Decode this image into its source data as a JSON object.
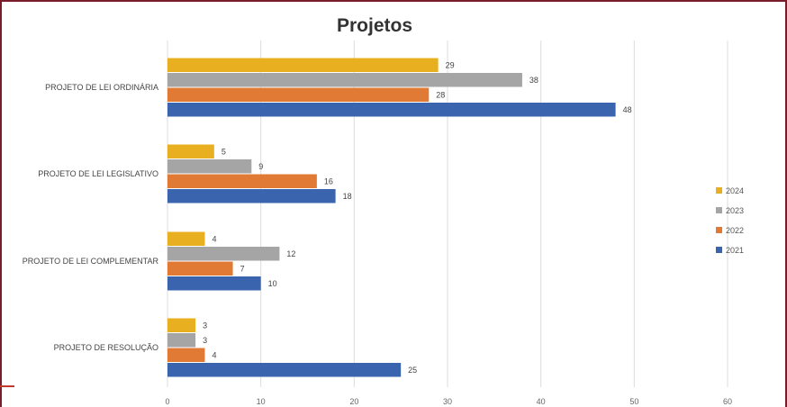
{
  "chart_data": {
    "type": "bar",
    "orientation": "horizontal",
    "title": "Projetos",
    "xlabel": "",
    "ylabel": "",
    "categories": [
      "PROJETO DE LEI ORDINÁRIA",
      "PROJETO DE LEI LEGISLATIVO",
      "PROJETO DE LEI COMPLEMENTAR",
      "PROJETO DE RESOLUÇÃO"
    ],
    "series": [
      {
        "name": "2024",
        "color": "#e8b020",
        "values": [
          29,
          5,
          4,
          3
        ]
      },
      {
        "name": "2023",
        "color": "#a5a5a5",
        "values": [
          38,
          9,
          12,
          3
        ]
      },
      {
        "name": "2022",
        "color": "#e07a35",
        "values": [
          28,
          16,
          7,
          4
        ]
      },
      {
        "name": "2021",
        "color": "#3a64ae",
        "values": [
          48,
          18,
          10,
          25
        ]
      }
    ],
    "xlim": [
      0,
      60
    ],
    "xticks": [
      0,
      10,
      20,
      30,
      40,
      50,
      60
    ],
    "grid": true,
    "legend_position": "right",
    "legend_order": [
      "2024",
      "2023",
      "2022",
      "2021"
    ]
  }
}
